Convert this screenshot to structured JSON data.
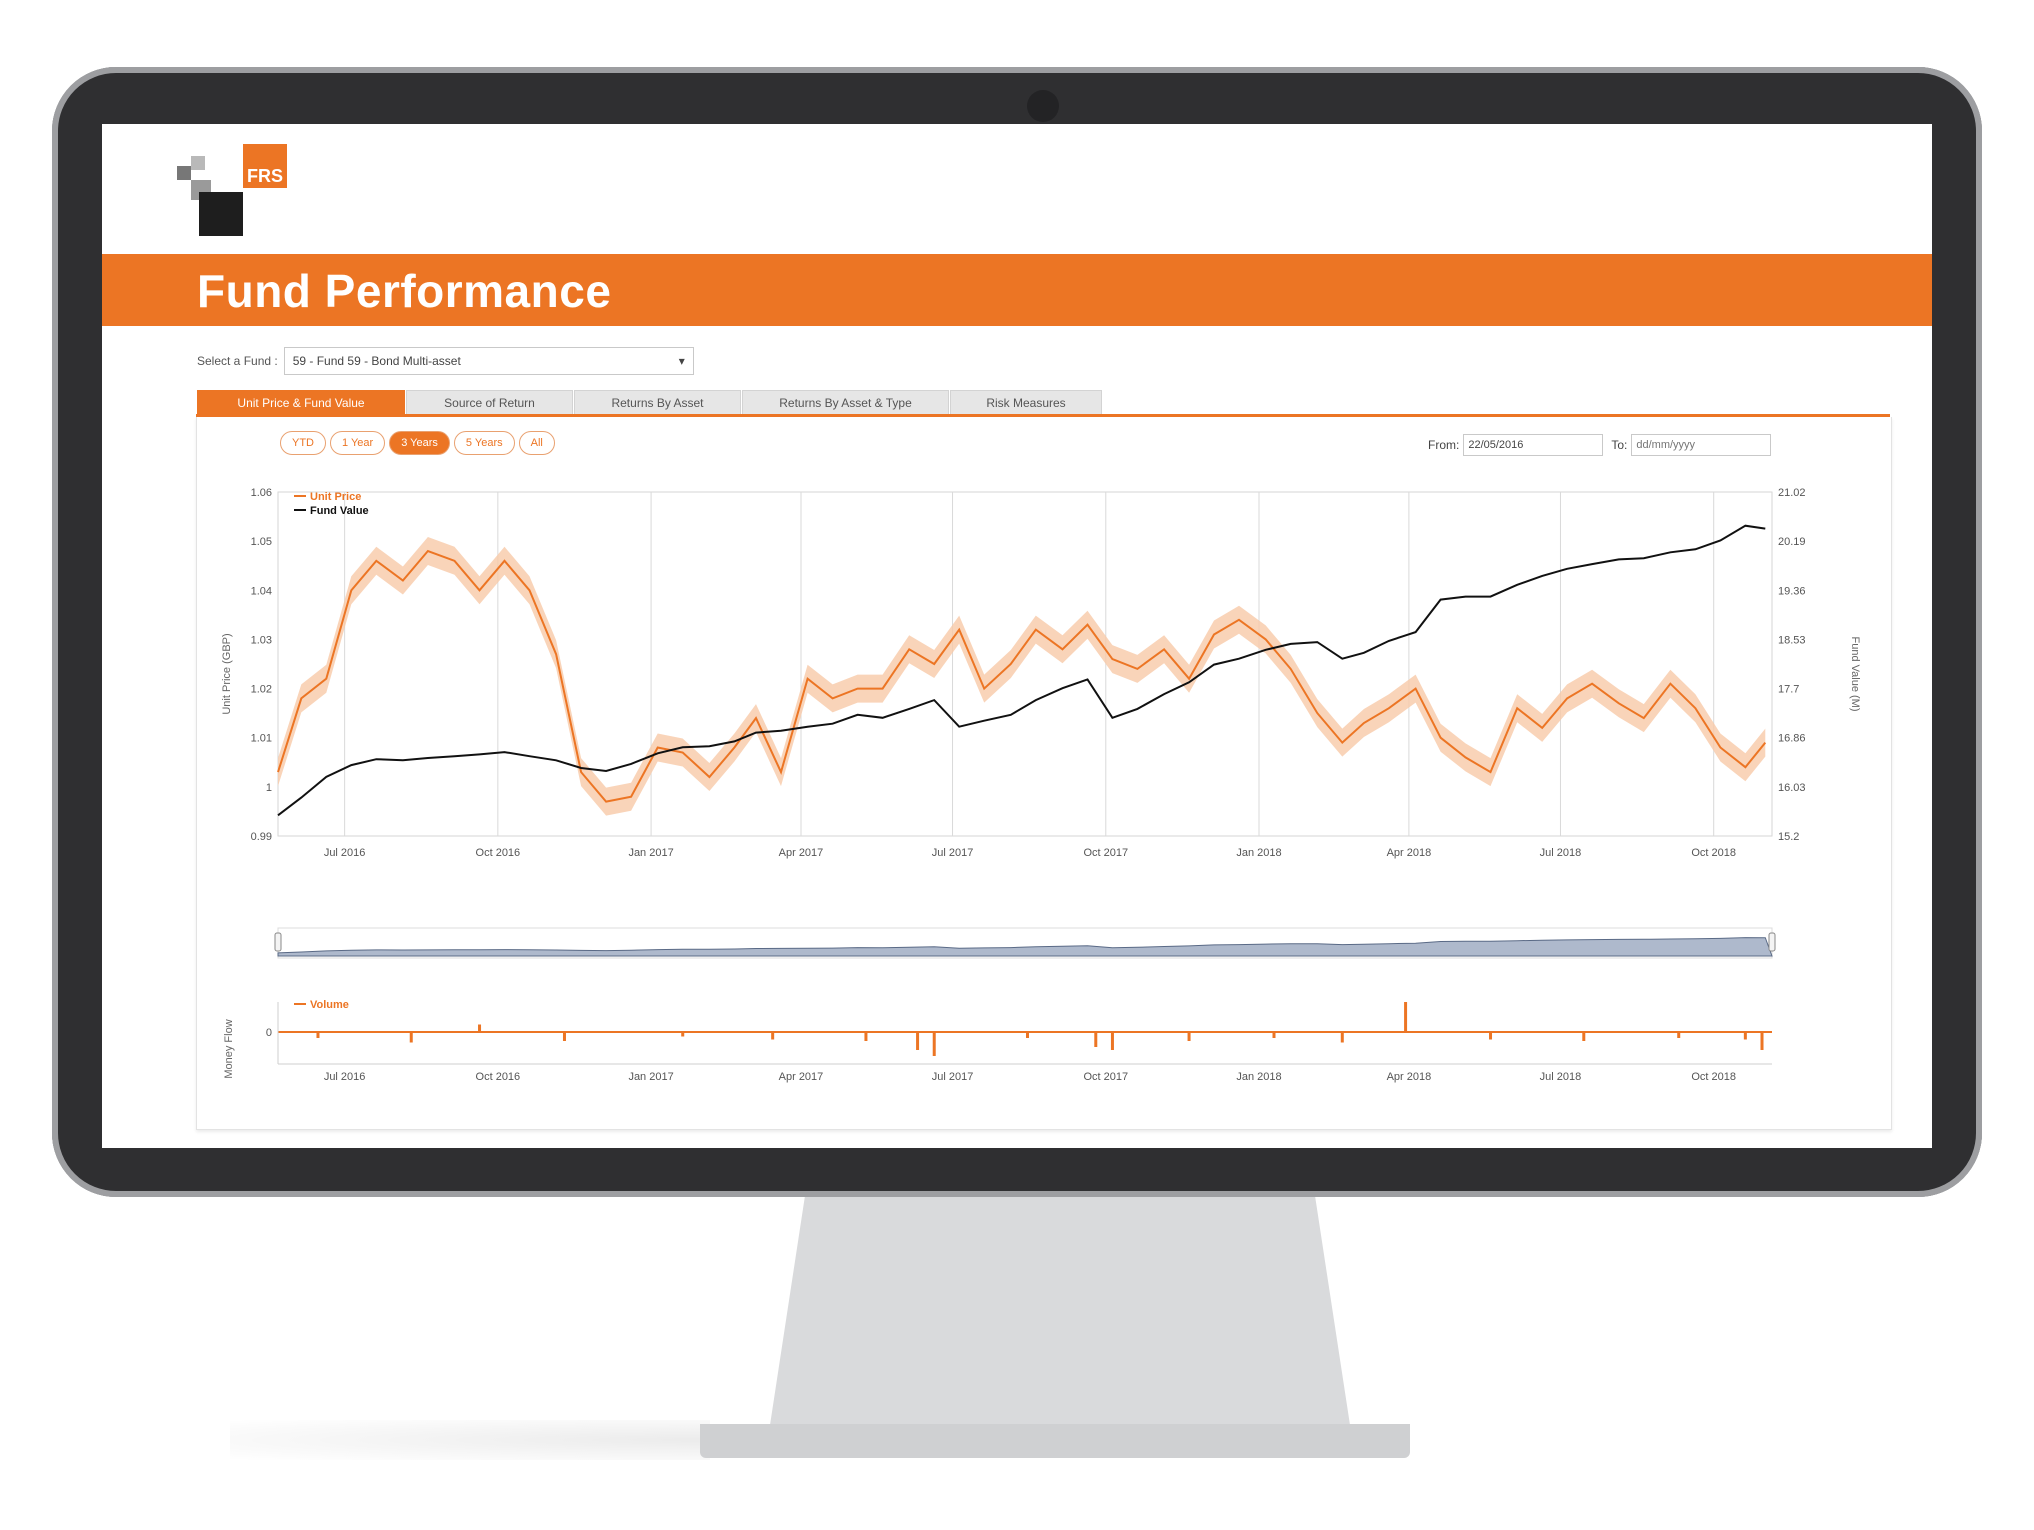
{
  "logo": {
    "text": "FRS"
  },
  "header": {
    "title": "Fund Performance"
  },
  "fund_selector": {
    "label": "Select a Fund :",
    "value": "59 - Fund 59 - Bond Multi-asset"
  },
  "tabs": [
    {
      "label": "Unit Price & Fund Value",
      "active": true
    },
    {
      "label": "Source of Return",
      "active": false
    },
    {
      "label": "Returns By Asset",
      "active": false
    },
    {
      "label": "Returns By Asset & Type",
      "active": false
    },
    {
      "label": "Risk Measures",
      "active": false
    }
  ],
  "range_buttons": [
    {
      "label": "YTD",
      "active": false
    },
    {
      "label": "1 Year",
      "active": false
    },
    {
      "label": "3 Years",
      "active": true
    },
    {
      "label": "5 Years",
      "active": false
    },
    {
      "label": "All",
      "active": false
    }
  ],
  "date_range": {
    "from_label": "From:",
    "from_value": "22/05/2016",
    "to_label": "To:",
    "to_placeholder": "dd/mm/yyyy"
  },
  "colors": {
    "accent": "#ec7524",
    "fund_value_line": "#111111",
    "band": "#f7c9a8"
  },
  "chart_data": [
    {
      "type": "line",
      "x_ticks": [
        "Jul 2016",
        "Oct 2016",
        "Jan 2017",
        "Apr 2017",
        "Jul 2017",
        "Oct 2017",
        "Jan 2018",
        "Apr 2018",
        "Jul 2018",
        "Oct 2018"
      ],
      "ylabel": "Unit Price (GBP)",
      "ylabel_right": "Fund Value (M)",
      "y_ticks": [
        "0.99",
        "1",
        "1.01",
        "1.02",
        "1.03",
        "1.04",
        "1.05",
        "1.06"
      ],
      "y2_ticks": [
        "15.2",
        "16.03",
        "16.86",
        "17.7",
        "18.53",
        "19.36",
        "20.19",
        "21.02"
      ],
      "ylim": [
        0.99,
        1.06
      ],
      "y2lim": [
        15.2,
        21.02
      ],
      "legend_position": "top-left",
      "series": [
        {
          "name": "Unit Price",
          "axis": "left",
          "x": [
            "2016-05-22",
            "2016-06-05",
            "2016-06-20",
            "2016-07-05",
            "2016-07-20",
            "2016-08-05",
            "2016-08-20",
            "2016-09-05",
            "2016-09-20",
            "2016-10-05",
            "2016-10-20",
            "2016-11-05",
            "2016-11-20",
            "2016-12-05",
            "2016-12-20",
            "2017-01-05",
            "2017-01-20",
            "2017-02-05",
            "2017-02-20",
            "2017-03-05",
            "2017-03-20",
            "2017-04-05",
            "2017-04-20",
            "2017-05-05",
            "2017-05-20",
            "2017-06-05",
            "2017-06-20",
            "2017-07-05",
            "2017-07-20",
            "2017-08-05",
            "2017-08-20",
            "2017-09-05",
            "2017-09-20",
            "2017-10-05",
            "2017-10-20",
            "2017-11-05",
            "2017-11-20",
            "2017-12-05",
            "2017-12-20",
            "2018-01-05",
            "2018-01-20",
            "2018-02-05",
            "2018-02-20",
            "2018-03-05",
            "2018-03-20",
            "2018-04-05",
            "2018-04-20",
            "2018-05-05",
            "2018-05-20",
            "2018-06-05",
            "2018-06-20",
            "2018-07-05",
            "2018-07-20",
            "2018-08-05",
            "2018-08-20",
            "2018-09-05",
            "2018-09-20",
            "2018-10-05",
            "2018-10-20",
            "2018-11-01"
          ],
          "values": [
            1.003,
            1.018,
            1.022,
            1.04,
            1.046,
            1.042,
            1.048,
            1.046,
            1.04,
            1.046,
            1.04,
            1.027,
            1.003,
            0.997,
            0.998,
            1.008,
            1.007,
            1.002,
            1.008,
            1.014,
            1.003,
            1.022,
            1.018,
            1.02,
            1.02,
            1.028,
            1.025,
            1.032,
            1.02,
            1.025,
            1.032,
            1.028,
            1.033,
            1.026,
            1.024,
            1.028,
            1.022,
            1.031,
            1.034,
            1.03,
            1.024,
            1.015,
            1.009,
            1.013,
            1.016,
            1.02,
            1.01,
            1.006,
            1.003,
            1.016,
            1.012,
            1.018,
            1.021,
            1.017,
            1.014,
            1.021,
            1.016,
            1.008,
            1.004,
            1.009
          ]
        },
        {
          "name": "Fund Value",
          "axis": "right",
          "x": [
            "2016-05-22",
            "2016-06-05",
            "2016-06-20",
            "2016-07-05",
            "2016-07-20",
            "2016-08-05",
            "2016-08-20",
            "2016-09-05",
            "2016-09-20",
            "2016-10-05",
            "2016-10-20",
            "2016-11-05",
            "2016-11-20",
            "2016-12-05",
            "2016-12-20",
            "2017-01-05",
            "2017-01-20",
            "2017-02-05",
            "2017-02-20",
            "2017-03-05",
            "2017-03-20",
            "2017-04-05",
            "2017-04-20",
            "2017-05-05",
            "2017-05-20",
            "2017-06-05",
            "2017-06-20",
            "2017-07-05",
            "2017-07-20",
            "2017-08-05",
            "2017-08-20",
            "2017-09-05",
            "2017-09-20",
            "2017-10-05",
            "2017-10-20",
            "2017-11-05",
            "2017-11-20",
            "2017-12-05",
            "2017-12-20",
            "2018-01-05",
            "2018-01-20",
            "2018-02-05",
            "2018-02-20",
            "2018-03-05",
            "2018-03-20",
            "2018-04-05",
            "2018-04-20",
            "2018-05-05",
            "2018-05-20",
            "2018-06-05",
            "2018-06-20",
            "2018-07-05",
            "2018-07-20",
            "2018-08-05",
            "2018-08-20",
            "2018-09-05",
            "2018-09-20",
            "2018-10-05",
            "2018-10-20",
            "2018-11-01"
          ],
          "values": [
            15.55,
            15.85,
            16.2,
            16.4,
            16.5,
            16.48,
            16.52,
            16.55,
            16.58,
            16.62,
            16.55,
            16.48,
            16.35,
            16.3,
            16.42,
            16.6,
            16.7,
            16.72,
            16.8,
            16.95,
            16.98,
            17.05,
            17.1,
            17.25,
            17.2,
            17.35,
            17.5,
            17.05,
            17.15,
            17.25,
            17.5,
            17.7,
            17.85,
            17.2,
            17.35,
            17.6,
            17.8,
            18.1,
            18.2,
            18.35,
            18.45,
            18.48,
            18.2,
            18.3,
            18.5,
            18.65,
            19.2,
            19.25,
            19.25,
            19.45,
            19.6,
            19.72,
            19.8,
            19.88,
            19.9,
            20.0,
            20.05,
            20.2,
            20.45,
            20.4
          ]
        }
      ]
    },
    {
      "type": "bar",
      "ylabel": "Money Flow",
      "y_ticks": [
        "0"
      ],
      "x_ticks": [
        "Jul 2016",
        "Oct 2016",
        "Jan 2017",
        "Apr 2017",
        "Jul 2017",
        "Oct 2017",
        "Jan 2018",
        "Apr 2018",
        "Jul 2018",
        "Oct 2018"
      ],
      "series": [
        {
          "name": "Volume",
          "x": [
            "2016-06-15",
            "2016-08-10",
            "2016-09-20",
            "2016-11-10",
            "2017-01-20",
            "2017-03-15",
            "2017-05-10",
            "2017-06-10",
            "2017-06-20",
            "2017-08-15",
            "2017-09-25",
            "2017-10-05",
            "2017-11-20",
            "2018-01-10",
            "2018-02-20",
            "2018-03-30",
            "2018-05-20",
            "2018-07-15",
            "2018-09-10",
            "2018-10-20",
            "2018-10-30"
          ],
          "values": [
            -0.2,
            -0.35,
            0.25,
            -0.3,
            -0.15,
            -0.25,
            -0.3,
            -0.6,
            -0.8,
            -0.2,
            -0.5,
            -0.6,
            -0.3,
            -0.2,
            -0.35,
            1.0,
            -0.25,
            -0.3,
            -0.2,
            -0.25,
            -0.6
          ]
        }
      ]
    }
  ]
}
